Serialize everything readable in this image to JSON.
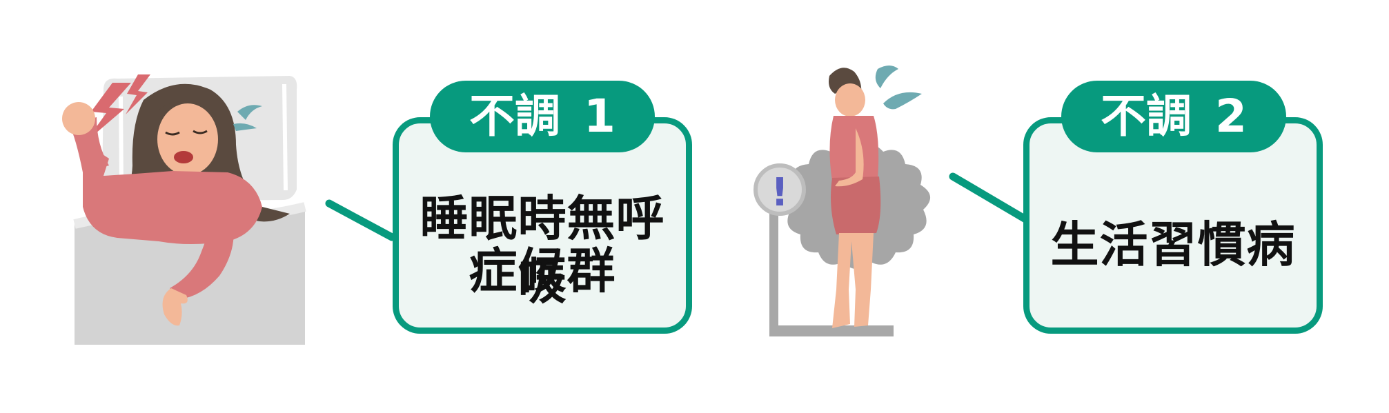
{
  "colors": {
    "accent": "#079a7e",
    "card_background": "#eef6f3",
    "skin": "#f3b898",
    "clothing": "#d9787a",
    "hair": "#5a4a3f",
    "alert_zigzag": "#d96a6f",
    "sweat_drops": "#6eaab1",
    "scale": "#a8a8a8"
  },
  "left": {
    "illustration": "woman-sleeping-in-bed-snoring",
    "card": {
      "tab_label": "不調",
      "tab_number": "1",
      "text_line1": "睡眠時無呼吸",
      "text_line2": "症候群"
    }
  },
  "right": {
    "illustration": "woman-on-bathroom-scale-worried",
    "scale_badge": "!",
    "card": {
      "tab_label": "不調",
      "tab_number": "2",
      "text_line1": "生活習慣病"
    }
  }
}
